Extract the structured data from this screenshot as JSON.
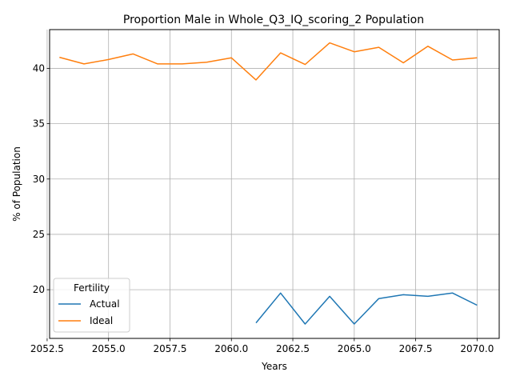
{
  "chart_data": {
    "type": "line",
    "title": "Proportion Male in Whole_Q3_IQ_scoring_2 Population",
    "xlabel": "Years",
    "ylabel": "% of Population",
    "xlim": [
      2052.6,
      2070.9
    ],
    "ylim": [
      15.6,
      43.5
    ],
    "xticks": [
      "2052.5",
      "2055.0",
      "2057.5",
      "2060.0",
      "2062.5",
      "2065.0",
      "2067.5",
      "2070.0"
    ],
    "yticks": [
      "20",
      "25",
      "30",
      "35",
      "40"
    ],
    "grid": true,
    "legend": {
      "title": "Fertility",
      "placement": "lower-left"
    },
    "series": [
      {
        "name": "Actual",
        "color": "#1f77b4",
        "x": [
          2061,
          2062,
          2063,
          2064,
          2065,
          2066,
          2067,
          2068,
          2069,
          2070
        ],
        "y": [
          17.0,
          19.7,
          16.9,
          19.4,
          16.9,
          19.2,
          19.55,
          19.4,
          19.7,
          18.6
        ]
      },
      {
        "name": "Ideal",
        "color": "#ff7f0e",
        "x": [
          2053,
          2054,
          2055,
          2056,
          2057,
          2058,
          2059,
          2060,
          2061,
          2062,
          2063,
          2064,
          2065,
          2066,
          2067,
          2068,
          2069,
          2070
        ],
        "y": [
          41.0,
          40.4,
          40.8,
          41.3,
          40.4,
          40.4,
          40.55,
          40.95,
          38.95,
          41.4,
          40.35,
          42.3,
          41.5,
          41.9,
          40.5,
          42.0,
          40.75,
          40.95
        ]
      }
    ]
  }
}
